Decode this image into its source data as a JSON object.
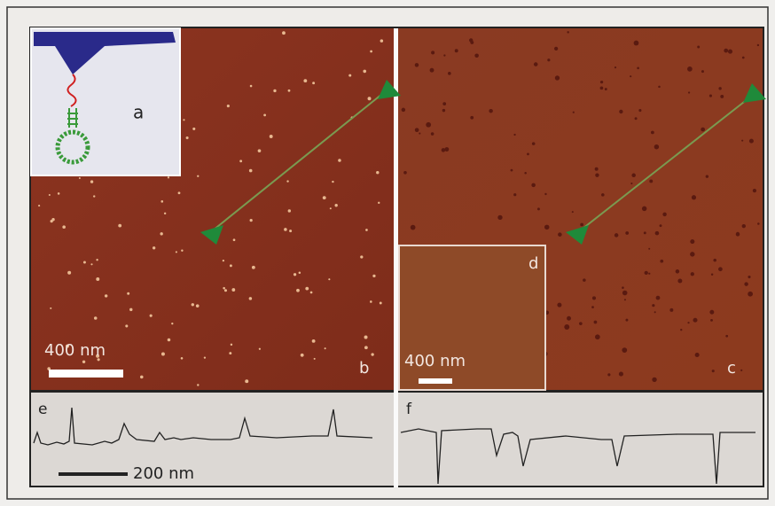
{
  "figure": {
    "panels": {
      "a": {
        "label": "a"
      },
      "b": {
        "label": "b",
        "scale_bar": "400 nm"
      },
      "c": {
        "label": "c"
      },
      "d": {
        "label": "d",
        "scale_bar": "400 nm"
      },
      "e": {
        "label": "e",
        "scale_bar": "200 nm"
      },
      "f": {
        "label": "f"
      }
    }
  }
}
